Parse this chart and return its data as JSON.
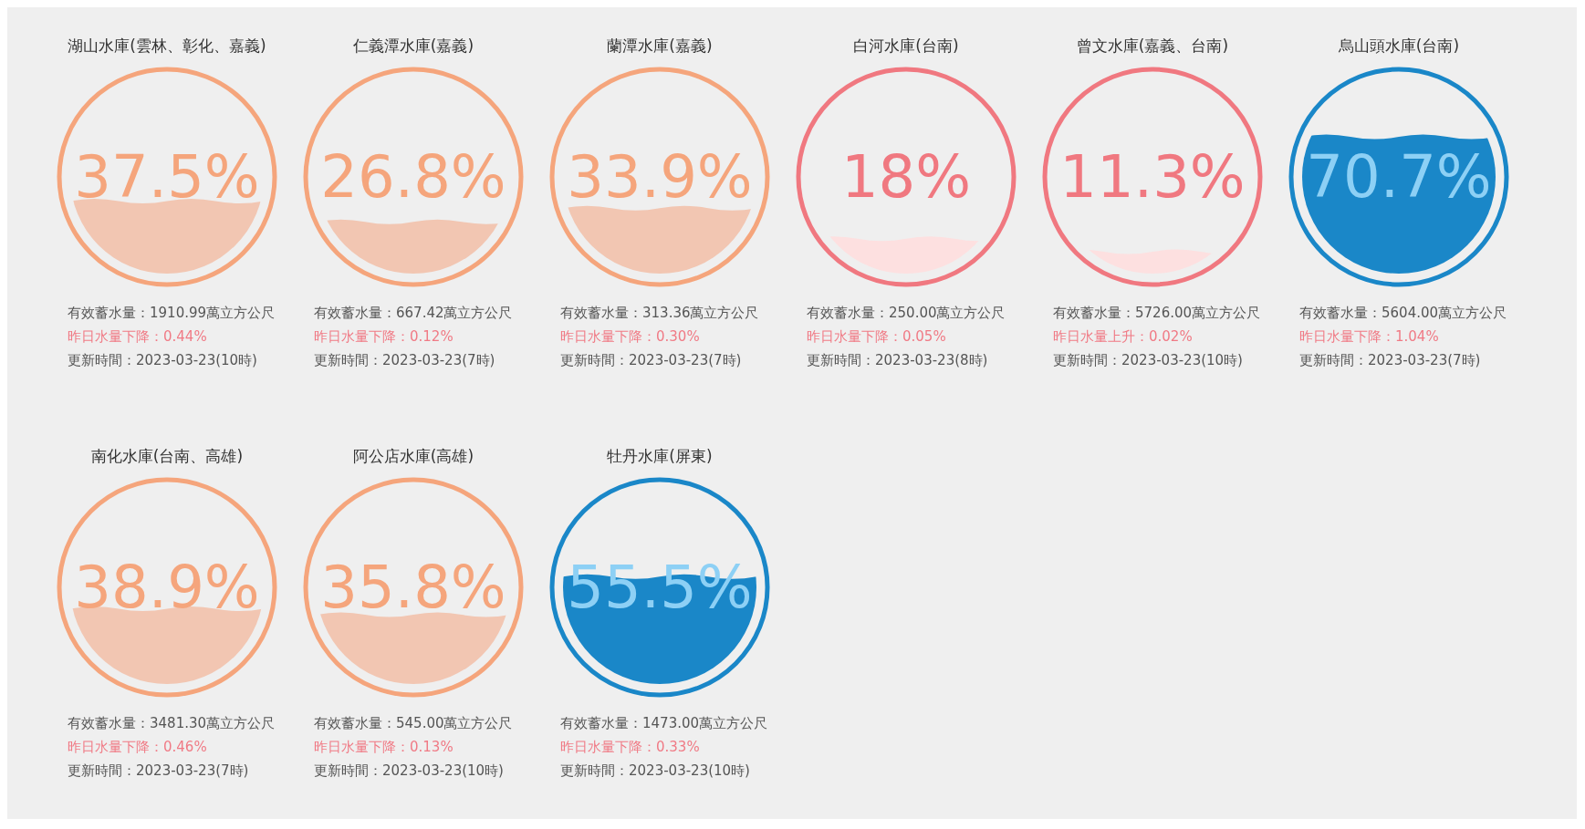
{
  "chart_data": [
    {
      "type": "other",
      "title": "湖山水庫(雲林、彰化、嘉義)",
      "values": [
        37.5
      ],
      "value_labels": [
        "37.5%"
      ],
      "color": "#f5a57c",
      "colors": [
        "#f2c6b2"
      ],
      "annotations": [
        "有效蓄水量：1910.99萬立方公尺",
        "昨日水量下降：0.44%",
        "更新時間：2023-03-23(10時)"
      ]
    },
    {
      "type": "other",
      "title": "仁義潭水庫(嘉義)",
      "values": [
        26.8
      ],
      "value_labels": [
        "26.8%"
      ],
      "color": "#f5a57c",
      "colors": [
        "#f2c6b2"
      ],
      "annotations": [
        "有效蓄水量：667.42萬立方公尺",
        "昨日水量下降：0.12%",
        "更新時間：2023-03-23(7時)"
      ]
    },
    {
      "type": "other",
      "title": "蘭潭水庫(嘉義)",
      "values": [
        33.9
      ],
      "value_labels": [
        "33.9%"
      ],
      "color": "#f5a57c",
      "colors": [
        "#f2c6b2"
      ],
      "annotations": [
        "有效蓄水量：313.36萬立方公尺",
        "昨日水量下降：0.30%",
        "更新時間：2023-03-23(7時)"
      ]
    },
    {
      "type": "other",
      "title": "白河水庫(台南)",
      "values": [
        18
      ],
      "value_labels": [
        "18%"
      ],
      "color": "#f07880",
      "colors": [
        "#fde0e0"
      ],
      "annotations": [
        "有效蓄水量：250.00萬立方公尺",
        "昨日水量下降：0.05%",
        "更新時間：2023-03-23(8時)"
      ]
    },
    {
      "type": "other",
      "title": "曾文水庫(嘉義、台南)",
      "values": [
        11.3
      ],
      "value_labels": [
        "11.3%"
      ],
      "color": "#f07880",
      "colors": [
        "#fde0e0"
      ],
      "annotations": [
        "有效蓄水量：5726.00萬立方公尺",
        "昨日水量上升：0.02%",
        "更新時間：2023-03-23(10時)"
      ]
    },
    {
      "type": "other",
      "title": "烏山頭水庫(台南)",
      "values": [
        70.7
      ],
      "value_labels": [
        "70.7%"
      ],
      "color": "#1a87c8",
      "colors": [
        "#1a87c8"
      ],
      "annotations": [
        "有效蓄水量：5604.00萬立方公尺",
        "昨日水量下降：1.04%",
        "更新時間：2023-03-23(7時)"
      ]
    },
    {
      "type": "other",
      "title": "南化水庫(台南、高雄)",
      "values": [
        38.9
      ],
      "value_labels": [
        "38.9%"
      ],
      "color": "#f5a57c",
      "colors": [
        "#f2c6b2"
      ],
      "annotations": [
        "有效蓄水量：3481.30萬立方公尺",
        "昨日水量下降：0.46%",
        "更新時間：2023-03-23(7時)"
      ]
    },
    {
      "type": "other",
      "title": "阿公店水庫(高雄)",
      "values": [
        35.8
      ],
      "value_labels": [
        "35.8%"
      ],
      "color": "#f5a57c",
      "colors": [
        "#f2c6b2"
      ],
      "annotations": [
        "有效蓄水量：545.00萬立方公尺",
        "昨日水量下降：0.13%",
        "更新時間：2023-03-23(10時)"
      ]
    },
    {
      "type": "other",
      "title": "牡丹水庫(屏東)",
      "values": [
        55.5
      ],
      "value_labels": [
        "55.5%"
      ],
      "color": "#1a87c8",
      "colors": [
        "#1a87c8"
      ],
      "annotations": [
        "有效蓄水量：1473.00萬立方公尺",
        "昨日水量下降：0.33%",
        "更新時間：2023-03-23(10時)"
      ]
    }
  ]
}
